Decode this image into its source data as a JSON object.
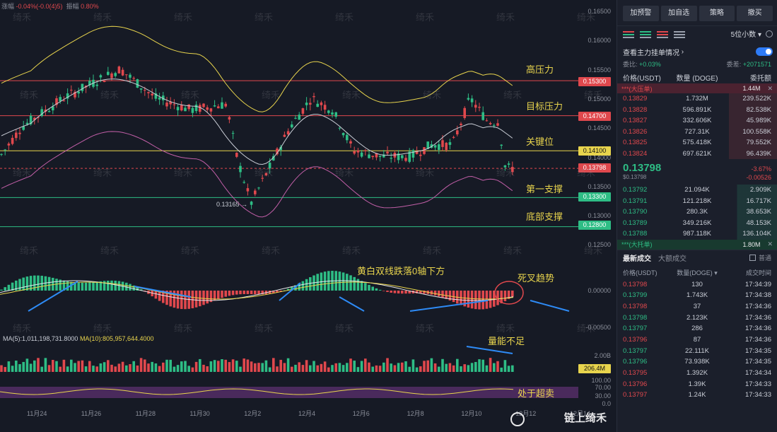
{
  "chart": {
    "top_info": {
      "label1": "涨幅",
      "val1": "-0.04%(-0.0(4)5)",
      "label2": "振幅",
      "val2": "0.80%"
    },
    "price_axis": [
      "0.16500",
      "0.16000",
      "0.15500",
      "0.15000",
      "0.14500",
      "0.14000",
      "0.13500",
      "0.13000",
      "0.12500"
    ],
    "price_tags": [
      {
        "value": "0.15300",
        "color": "#e0484d"
      },
      {
        "value": "0.14700",
        "color": "#e0484d"
      },
      {
        "value": "0.14100",
        "color": "#e8d44d"
      },
      {
        "value": "0.13798",
        "color": "#e0484d"
      },
      {
        "value": "0.13300",
        "color": "#2ebd85"
      },
      {
        "value": "0.12800",
        "color": "#2ebd85"
      }
    ],
    "annotations": {
      "resistance_high": "高压力",
      "target_resistance": "目标压力",
      "key_level": "关键位",
      "support_1": "第一支撑",
      "support_bottom": "底部支撑",
      "macd_note": "黄白双线跌落0轴下方",
      "dead_cross": "死叉趋势",
      "volume_note": "量能不足",
      "oversold": "处于超卖"
    },
    "low_label": "0.13165",
    "macd_axis": [
      "0.00000",
      "-0.00500"
    ],
    "ma_legend": {
      "ma5": "MA(5):1,011,198,731.8000",
      "ma10": "MA(10):805,957,644.4000"
    },
    "volume_axis": [
      "2.00B",
      "206.4M"
    ],
    "rsi_axis": [
      "100.00",
      "70.00",
      "30.00",
      "0.0"
    ],
    "x_labels": [
      "11月24",
      "11月26",
      "11月28",
      "11月30",
      "12月2",
      "12月4",
      "12月6",
      "12月8",
      "12月10",
      "12月12",
      "12月14"
    ],
    "watermark": "绮禾",
    "signature": "链上绮禾"
  },
  "panel": {
    "buttons": [
      "加预警",
      "加自选",
      "策略",
      "撤买"
    ],
    "decimals": "5位小数",
    "order_toggle_label": "查看主力挂单情况",
    "ratio_left_label": "委比",
    "ratio_left_val": "+0.03%",
    "ratio_right_label": "委差",
    "ratio_right_val": "+2071571",
    "ob_headers": [
      "价格(USDT)",
      "数量 (DOGE)",
      "委托额"
    ],
    "big_ask": {
      "label": "***(大压单)",
      "value": "1.44M"
    },
    "asks": [
      {
        "p": "0.13829",
        "q": "1.732M",
        "t": "239.522K"
      },
      {
        "p": "0.13828",
        "q": "596.891K",
        "t": "82.538K"
      },
      {
        "p": "0.13827",
        "q": "332.606K",
        "t": "45.989K"
      },
      {
        "p": "0.13826",
        "q": "727.31K",
        "t": "100.558K"
      },
      {
        "p": "0.13825",
        "q": "575.418K",
        "t": "79.552K"
      },
      {
        "p": "0.13824",
        "q": "697.621K",
        "t": "96.439K"
      }
    ],
    "last_price": "0.13798",
    "last_sub": "$0.13798",
    "last_change": "-3.67%",
    "last_change_abs": "-0.00526",
    "bids": [
      {
        "p": "0.13792",
        "q": "21.094K",
        "t": "2.909K"
      },
      {
        "p": "0.13791",
        "q": "121.218K",
        "t": "16.717K"
      },
      {
        "p": "0.13790",
        "q": "280.3K",
        "t": "38.653K"
      },
      {
        "p": "0.13789",
        "q": "349.216K",
        "t": "48.153K"
      },
      {
        "p": "0.13788",
        "q": "987.118K",
        "t": "136.104K"
      }
    ],
    "big_bid": {
      "label": "***(大托单)",
      "value": "1.80M"
    },
    "trade_tabs": [
      "最新成交",
      "大额成交"
    ],
    "normal_label": "普通",
    "trade_headers": [
      "价格(USDT)",
      "数量(DOGE)",
      "成交时间"
    ],
    "trades": [
      {
        "p": "0.13798",
        "q": "130",
        "t": "17:34:39",
        "c": "r"
      },
      {
        "p": "0.13799",
        "q": "1.743K",
        "t": "17:34:38",
        "c": "g"
      },
      {
        "p": "0.13798",
        "q": "37",
        "t": "17:34:36",
        "c": "r"
      },
      {
        "p": "0.13798",
        "q": "2.123K",
        "t": "17:34:36",
        "c": "g"
      },
      {
        "p": "0.13797",
        "q": "286",
        "t": "17:34:36",
        "c": "g"
      },
      {
        "p": "0.13796",
        "q": "87",
        "t": "17:34:36",
        "c": "r"
      },
      {
        "p": "0.13797",
        "q": "22.111K",
        "t": "17:34:35",
        "c": "g"
      },
      {
        "p": "0.13796",
        "q": "73.938K",
        "t": "17:34:35",
        "c": "g"
      },
      {
        "p": "0.13795",
        "q": "1.392K",
        "t": "17:34:34",
        "c": "r"
      },
      {
        "p": "0.13796",
        "q": "1.39K",
        "t": "17:34:33",
        "c": "r"
      },
      {
        "p": "0.13797",
        "q": "1.24K",
        "t": "17:34:33",
        "c": "r"
      }
    ]
  }
}
